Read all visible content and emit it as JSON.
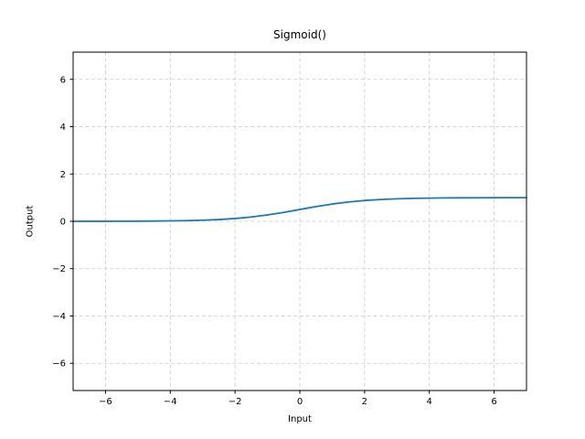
{
  "chart_data": {
    "type": "line",
    "title": "Sigmoid()",
    "xlabel": "Input",
    "ylabel": "Output",
    "xlim": [
      -7,
      7
    ],
    "ylim": [
      -7.15,
      7.15
    ],
    "xticks": [
      -6,
      -4,
      -2,
      0,
      2,
      4,
      6
    ],
    "yticks": [
      -6,
      -4,
      -2,
      0,
      2,
      4,
      6
    ],
    "grid": true,
    "grid_style": "dashed",
    "legend": "none",
    "colors": {
      "line": "#1f77b4",
      "grid": "#c9c9c9",
      "spine": "#000000",
      "background": "#ffffff"
    },
    "series": [
      {
        "name": "Sigmoid()",
        "x": [
          -7,
          -6.5,
          -6,
          -5.5,
          -5,
          -4.5,
          -4,
          -3.5,
          -3,
          -2.5,
          -2,
          -1.5,
          -1,
          -0.5,
          0,
          0.5,
          1,
          1.5,
          2,
          2.5,
          3,
          3.5,
          4,
          4.5,
          5,
          5.5,
          6,
          6.5,
          7
        ],
        "y": [
          0.000911,
          0.001503,
          0.002473,
          0.00407,
          0.006693,
          0.011109,
          0.017986,
          0.029312,
          0.047426,
          0.075858,
          0.119203,
          0.182426,
          0.268941,
          0.377541,
          0.5,
          0.622459,
          0.731059,
          0.817574,
          0.880797,
          0.924142,
          0.952574,
          0.970688,
          0.982014,
          0.988891,
          0.993307,
          0.99593,
          0.997527,
          0.998497,
          0.999089
        ]
      }
    ]
  }
}
